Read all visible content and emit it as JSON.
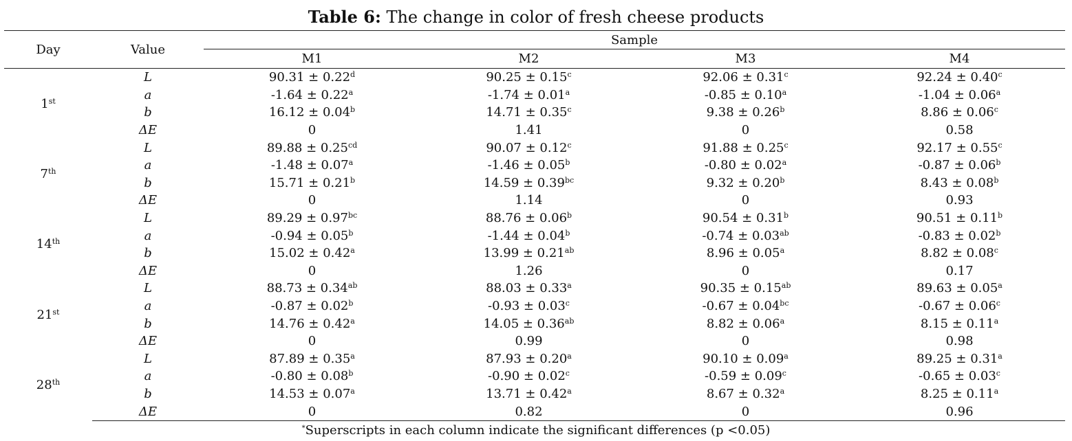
{
  "title": {
    "label": "Table 6:",
    "text": " The change in color of fresh cheese products"
  },
  "header": {
    "day": "Day",
    "value": "Value",
    "sample": "Sample",
    "columns": [
      "M1",
      "M2",
      "M3",
      "M4"
    ]
  },
  "groups": [
    {
      "day": "1",
      "suffix": "st",
      "rows": [
        {
          "v": "L",
          "cells": [
            {
              "t": "90.31 ± 0.22",
              "s": "d"
            },
            {
              "t": "90.25 ± 0.15",
              "s": "c"
            },
            {
              "t": "92.06 ± 0.31",
              "s": "c"
            },
            {
              "t": "92.24 ± 0.40",
              "s": "c"
            }
          ]
        },
        {
          "v": "a",
          "cells": [
            {
              "t": "-1.64 ± 0.22",
              "s": "a"
            },
            {
              "t": "-1.74 ± 0.01",
              "s": "a"
            },
            {
              "t": "-0.85 ± 0.10",
              "s": "a"
            },
            {
              "t": "-1.04 ± 0.06",
              "s": "a"
            }
          ]
        },
        {
          "v": "b",
          "cells": [
            {
              "t": "16.12 ± 0.04",
              "s": "b"
            },
            {
              "t": "14.71 ± 0.35",
              "s": "c"
            },
            {
              "t": "9.38 ± 0.26",
              "s": "b"
            },
            {
              "t": "8.86 ± 0.06",
              "s": "c"
            }
          ]
        },
        {
          "v": "ΔE",
          "cells": [
            {
              "t": "0",
              "s": ""
            },
            {
              "t": "1.41",
              "s": ""
            },
            {
              "t": "0",
              "s": ""
            },
            {
              "t": "0.58",
              "s": ""
            }
          ]
        }
      ]
    },
    {
      "day": "7",
      "suffix": "th",
      "rows": [
        {
          "v": "L",
          "cells": [
            {
              "t": "89.88 ± 0.25",
              "s": "cd"
            },
            {
              "t": "90.07 ± 0.12",
              "s": "c"
            },
            {
              "t": "91.88 ± 0.25",
              "s": "c"
            },
            {
              "t": "92.17 ± 0.55",
              "s": "c"
            }
          ]
        },
        {
          "v": "a",
          "cells": [
            {
              "t": "-1.48 ± 0.07",
              "s": "a"
            },
            {
              "t": "-1.46 ± 0.05",
              "s": "b"
            },
            {
              "t": "-0.80 ± 0.02",
              "s": "a"
            },
            {
              "t": "-0.87 ± 0.06",
              "s": "b"
            }
          ]
        },
        {
          "v": "b",
          "cells": [
            {
              "t": "15.71 ± 0.21",
              "s": "b"
            },
            {
              "t": "14.59 ± 0.39",
              "s": "bc"
            },
            {
              "t": "9.32 ± 0.20",
              "s": "b"
            },
            {
              "t": "8.43 ± 0.08",
              "s": "b"
            }
          ]
        },
        {
          "v": "ΔE",
          "cells": [
            {
              "t": "0",
              "s": ""
            },
            {
              "t": "1.14",
              "s": ""
            },
            {
              "t": "0",
              "s": ""
            },
            {
              "t": "0.93",
              "s": ""
            }
          ]
        }
      ]
    },
    {
      "day": "14",
      "suffix": "th",
      "rows": [
        {
          "v": "L",
          "cells": [
            {
              "t": "89.29 ± 0.97",
              "s": "bc"
            },
            {
              "t": "88.76 ± 0.06",
              "s": "b"
            },
            {
              "t": "90.54 ± 0.31",
              "s": "b"
            },
            {
              "t": "90.51 ± 0.11",
              "s": "b"
            }
          ]
        },
        {
          "v": "a",
          "cells": [
            {
              "t": "-0.94 ± 0.05",
              "s": "b"
            },
            {
              "t": "-1.44 ± 0.04",
              "s": "b"
            },
            {
              "t": "-0.74 ± 0.03",
              "s": "ab"
            },
            {
              "t": "-0.83 ± 0.02",
              "s": "b"
            }
          ]
        },
        {
          "v": "b",
          "cells": [
            {
              "t": "15.02 ± 0.42",
              "s": "a"
            },
            {
              "t": "13.99 ± 0.21",
              "s": "ab"
            },
            {
              "t": "8.96 ± 0.05",
              "s": "a"
            },
            {
              "t": "8.82 ± 0.08",
              "s": "c"
            }
          ]
        },
        {
          "v": "ΔE",
          "cells": [
            {
              "t": "0",
              "s": ""
            },
            {
              "t": "1.26",
              "s": ""
            },
            {
              "t": "0",
              "s": ""
            },
            {
              "t": "0.17",
              "s": ""
            }
          ]
        }
      ]
    },
    {
      "day": "21",
      "suffix": "st",
      "rows": [
        {
          "v": "L",
          "cells": [
            {
              "t": "88.73 ± 0.34",
              "s": "ab"
            },
            {
              "t": "88.03 ± 0.33",
              "s": "a"
            },
            {
              "t": "90.35 ± 0.15",
              "s": "ab"
            },
            {
              "t": "89.63 ± 0.05",
              "s": "a"
            }
          ]
        },
        {
          "v": "a",
          "cells": [
            {
              "t": "-0.87 ± 0.02",
              "s": "b"
            },
            {
              "t": "-0.93 ± 0.03",
              "s": "c"
            },
            {
              "t": "-0.67 ± 0.04",
              "s": "bc"
            },
            {
              "t": "-0.67 ± 0.06",
              "s": "c"
            }
          ]
        },
        {
          "v": "b",
          "cells": [
            {
              "t": "14.76 ± 0.42",
              "s": "a"
            },
            {
              "t": "14.05 ± 0.36",
              "s": "ab"
            },
            {
              "t": "8.82 ± 0.06",
              "s": "a"
            },
            {
              "t": "8.15 ± 0.11",
              "s": "a"
            }
          ]
        },
        {
          "v": "ΔE",
          "cells": [
            {
              "t": "0",
              "s": ""
            },
            {
              "t": "0.99",
              "s": ""
            },
            {
              "t": "0",
              "s": ""
            },
            {
              "t": "0.98",
              "s": ""
            }
          ]
        }
      ]
    },
    {
      "day": "28",
      "suffix": "th",
      "rows": [
        {
          "v": "L",
          "cells": [
            {
              "t": "87.89 ± 0.35",
              "s": "a"
            },
            {
              "t": "87.93 ± 0.20",
              "s": "a"
            },
            {
              "t": "90.10 ± 0.09",
              "s": "a"
            },
            {
              "t": "89.25 ± 0.31",
              "s": "a"
            }
          ]
        },
        {
          "v": "a",
          "cells": [
            {
              "t": "-0.80 ± 0.08",
              "s": "b"
            },
            {
              "t": "-0.90 ± 0.02",
              "s": "c"
            },
            {
              "t": "-0.59 ± 0.09",
              "s": "c"
            },
            {
              "t": "-0.65 ± 0.03",
              "s": "c"
            }
          ]
        },
        {
          "v": "b",
          "cells": [
            {
              "t": "14.53 ± 0.07",
              "s": "a"
            },
            {
              "t": "13.71 ± 0.42",
              "s": "a"
            },
            {
              "t": "8.67 ± 0.32",
              "s": "a"
            },
            {
              "t": "8.25 ± 0.11",
              "s": "a"
            }
          ]
        },
        {
          "v": "ΔE",
          "cells": [
            {
              "t": "0",
              "s": ""
            },
            {
              "t": "0.82",
              "s": ""
            },
            {
              "t": "0",
              "s": ""
            },
            {
              "t": "0.96",
              "s": ""
            }
          ]
        }
      ]
    }
  ],
  "footnote": {
    "mark": "*",
    "text": "Superscripts in each column indicate the significant differences (p <0.05)"
  }
}
